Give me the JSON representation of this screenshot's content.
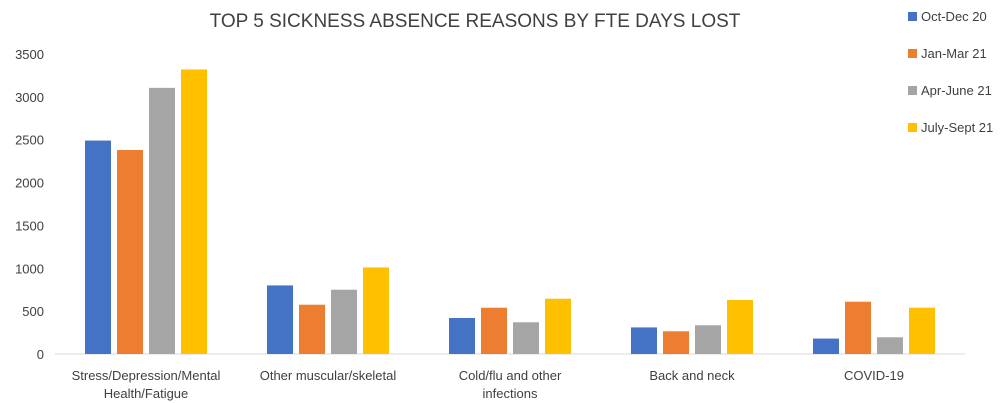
{
  "chart_data": {
    "type": "bar",
    "title": "TOP 5 SICKNESS ABSENCE REASONS BY FTE DAYS LOST",
    "categories": [
      [
        "Stress/Depression/Mental",
        "Health/Fatigue"
      ],
      [
        "Other muscular/skeletal"
      ],
      [
        "Cold/flu and other",
        "infections"
      ],
      [
        "Back and neck"
      ],
      [
        "COVID-19"
      ]
    ],
    "series": [
      {
        "name": "Oct-Dec 20",
        "color": "#4472C4",
        "values": [
          2490,
          800,
          420,
          310,
          180
        ]
      },
      {
        "name": "Jan-Mar 21",
        "color": "#ED7D31",
        "values": [
          2380,
          575,
          540,
          265,
          610
        ]
      },
      {
        "name": "Apr-June 21",
        "color": "#A5A5A5",
        "values": [
          3105,
          750,
          370,
          335,
          195
        ]
      },
      {
        "name": "July-Sept 21",
        "color": "#FFC000",
        "values": [
          3320,
          1010,
          645,
          630,
          540
        ]
      }
    ],
    "ylim": [
      0,
      3500
    ],
    "yticks": [
      0,
      500,
      1000,
      1500,
      2000,
      2500,
      3000,
      3500
    ],
    "grid": false,
    "legend_position": "right"
  }
}
